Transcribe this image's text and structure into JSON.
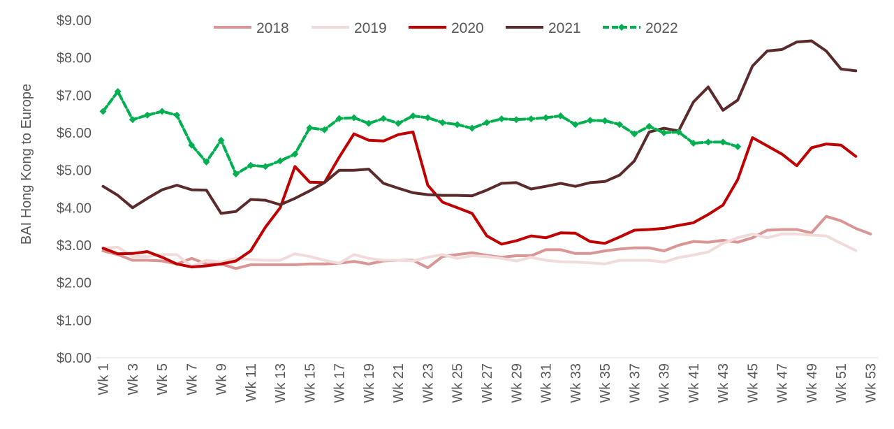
{
  "chart_data": {
    "type": "line",
    "ylabel": "BAI Hong Kong to Europe",
    "xlabel": "",
    "ylim": [
      0,
      9
    ],
    "y_ticks": [
      "$0.00",
      "$1.00",
      "$2.00",
      "$3.00",
      "$4.00",
      "$5.00",
      "$6.00",
      "$7.00",
      "$8.00",
      "$9.00"
    ],
    "x_categories": [
      "Wk 1",
      "Wk 2",
      "Wk 3",
      "Wk 4",
      "Wk 5",
      "Wk 6",
      "Wk 7",
      "Wk 8",
      "Wk 9",
      "Wk 10",
      "Wk 11",
      "Wk 12",
      "Wk 13",
      "Wk 14",
      "Wk 15",
      "Wk 16",
      "Wk 17",
      "Wk 18",
      "Wk 19",
      "Wk 20",
      "Wk 21",
      "Wk 22",
      "Wk 23",
      "Wk 24",
      "Wk 25",
      "Wk 26",
      "Wk 27",
      "Wk 28",
      "Wk 29",
      "Wk 30",
      "Wk 31",
      "Wk 32",
      "Wk 33",
      "Wk 34",
      "Wk 35",
      "Wk 36",
      "Wk 37",
      "Wk 38",
      "Wk 39",
      "Wk 40",
      "Wk 41",
      "Wk 42",
      "Wk 43",
      "Wk 44",
      "Wk 45",
      "Wk 46",
      "Wk 47",
      "Wk 48",
      "Wk 49",
      "Wk 50",
      "Wk 51",
      "Wk 52",
      "Wk 53"
    ],
    "x_tick_labels_shown": [
      "Wk 1",
      "Wk 3",
      "Wk 5",
      "Wk 7",
      "Wk 9",
      "Wk 11",
      "Wk 13",
      "Wk 15",
      "Wk 17",
      "Wk 19",
      "Wk 21",
      "Wk 23",
      "Wk 25",
      "Wk 27",
      "Wk 29",
      "Wk 31",
      "Wk 33",
      "Wk 35",
      "Wk 37",
      "Wk 39",
      "Wk 41",
      "Wk 43",
      "Wk 45",
      "Wk 47",
      "Wk 49",
      "Wk 51",
      "Wk 53"
    ],
    "grid": false,
    "legend_position": "top-center",
    "series": [
      {
        "name": "2018",
        "color": "#d99694",
        "marker": "none",
        "values": [
          2.85,
          2.75,
          2.6,
          2.6,
          2.58,
          2.5,
          2.65,
          2.5,
          2.5,
          2.38,
          2.48,
          2.48,
          2.48,
          2.48,
          2.5,
          2.5,
          2.52,
          2.57,
          2.5,
          2.58,
          2.6,
          2.6,
          2.4,
          2.7,
          2.75,
          2.8,
          2.73,
          2.68,
          2.72,
          2.72,
          2.88,
          2.88,
          2.78,
          2.78,
          2.85,
          2.9,
          2.93,
          2.93,
          2.85,
          3.0,
          3.1,
          3.08,
          3.13,
          3.08,
          3.2,
          3.4,
          3.42,
          3.42,
          3.33,
          3.77,
          3.65,
          3.45,
          3.3
        ]
      },
      {
        "name": "2019",
        "color": "#f2dcdb",
        "marker": "none",
        "values": [
          2.92,
          2.95,
          2.7,
          2.7,
          2.75,
          2.75,
          2.43,
          2.6,
          2.55,
          2.65,
          2.62,
          2.6,
          2.6,
          2.77,
          2.7,
          2.6,
          2.52,
          2.75,
          2.65,
          2.6,
          2.6,
          2.58,
          2.68,
          2.75,
          2.65,
          2.72,
          2.7,
          2.65,
          2.58,
          2.68,
          2.6,
          2.56,
          2.55,
          2.53,
          2.5,
          2.6,
          2.6,
          2.6,
          2.55,
          2.67,
          2.74,
          2.82,
          3.05,
          3.2,
          3.3,
          3.2,
          3.3,
          3.3,
          3.27,
          3.25,
          3.05,
          2.86
        ]
      },
      {
        "name": "2020",
        "color": "#c00000",
        "marker": "none",
        "values": [
          2.92,
          2.77,
          2.78,
          2.83,
          2.68,
          2.5,
          2.42,
          2.45,
          2.5,
          2.58,
          2.85,
          3.48,
          4.0,
          5.1,
          4.68,
          4.67,
          5.35,
          5.97,
          5.8,
          5.78,
          5.95,
          6.02,
          4.6,
          4.15,
          4.0,
          3.85,
          3.25,
          3.03,
          3.12,
          3.25,
          3.2,
          3.33,
          3.32,
          3.1,
          3.05,
          3.22,
          3.4,
          3.42,
          3.45,
          3.53,
          3.6,
          3.82,
          4.07,
          4.75,
          5.87,
          5.65,
          5.43,
          5.12,
          5.6,
          5.7,
          5.67,
          5.37
        ]
      },
      {
        "name": "2021",
        "color": "#5b2a2a",
        "marker": "none",
        "values": [
          4.57,
          4.33,
          4.0,
          4.25,
          4.48,
          4.6,
          4.48,
          4.47,
          3.85,
          3.9,
          4.22,
          4.2,
          4.08,
          4.25,
          4.45,
          4.67,
          5.0,
          5.0,
          5.03,
          4.65,
          4.52,
          4.4,
          4.35,
          4.33,
          4.33,
          4.32,
          4.47,
          4.65,
          4.67,
          4.5,
          4.57,
          4.65,
          4.57,
          4.67,
          4.7,
          4.87,
          5.25,
          6.02,
          6.12,
          6.05,
          6.82,
          7.22,
          6.6,
          6.87,
          7.78,
          8.18,
          8.22,
          8.42,
          8.45,
          8.18,
          7.7,
          7.65
        ]
      },
      {
        "name": "2022",
        "color": "#00b050",
        "marker": "diamond",
        "dashed": true,
        "values": [
          6.57,
          7.1,
          6.35,
          6.47,
          6.57,
          6.47,
          5.67,
          5.22,
          5.8,
          4.9,
          5.13,
          5.1,
          5.25,
          5.43,
          6.13,
          6.08,
          6.38,
          6.4,
          6.25,
          6.38,
          6.25,
          6.45,
          6.4,
          6.27,
          6.22,
          6.12,
          6.27,
          6.37,
          6.35,
          6.37,
          6.4,
          6.45,
          6.22,
          6.33,
          6.32,
          6.22,
          5.97,
          6.17,
          6.0,
          6.02,
          5.72,
          5.75,
          5.75,
          5.63
        ]
      }
    ]
  }
}
